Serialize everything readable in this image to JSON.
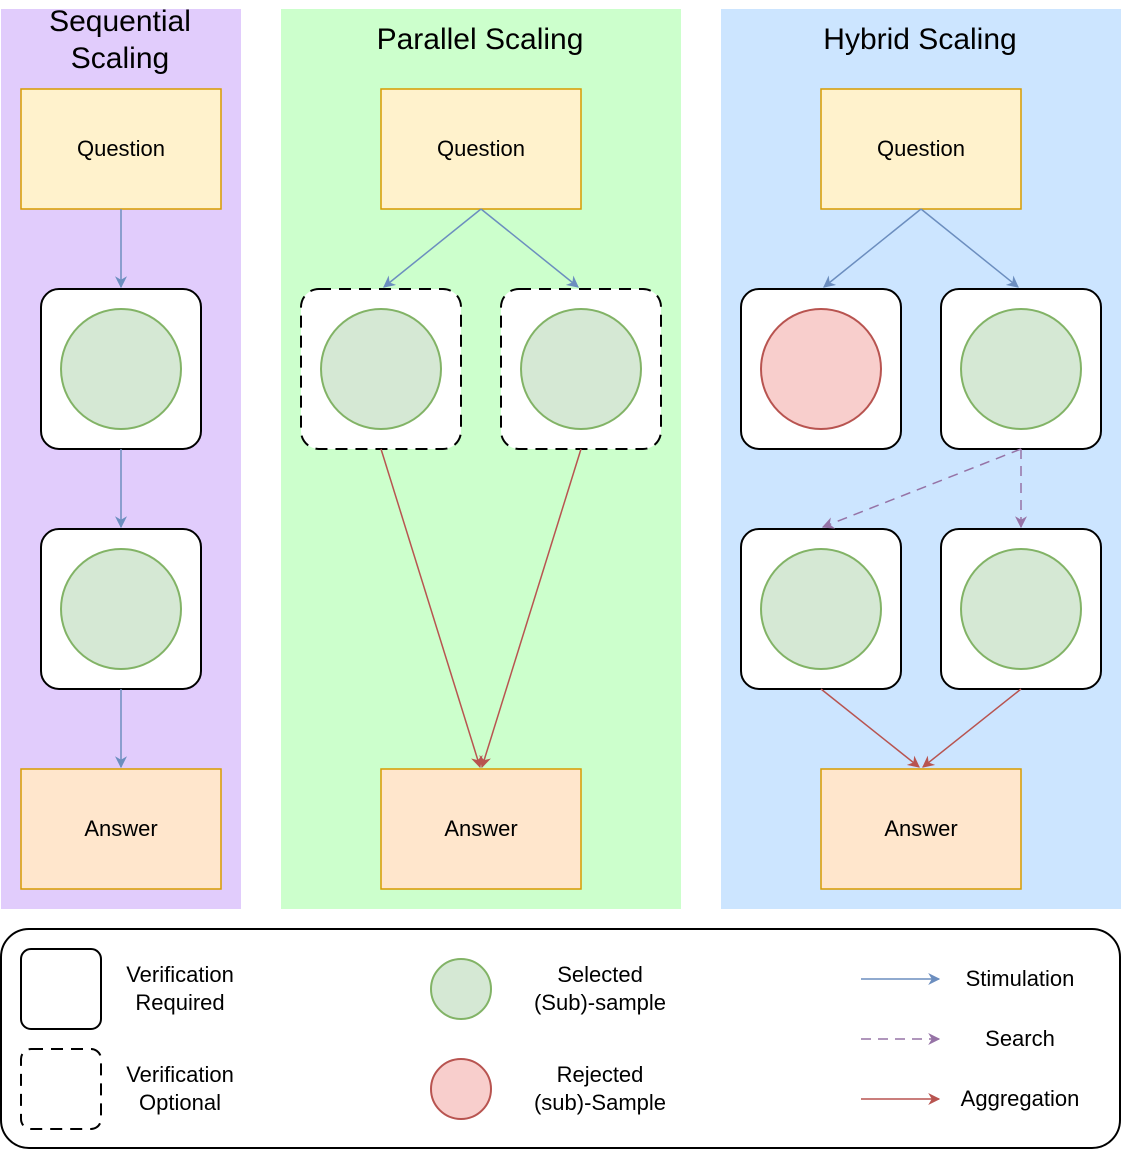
{
  "panels": {
    "sequential": {
      "title_line1": "Sequential",
      "title_line2": "Scaling",
      "question": "Question",
      "answer": "Answer",
      "bg": "#e1ccfc"
    },
    "parallel": {
      "title": "Parallel Scaling",
      "question": "Question",
      "answer": "Answer",
      "bg": "#ccffcc"
    },
    "hybrid": {
      "title": "Hybrid Scaling",
      "question": "Question",
      "answer": "Answer",
      "bg": "#cce5ff"
    }
  },
  "legend": {
    "verification_required": {
      "line1": "Verification",
      "line2": "Required"
    },
    "verification_optional": {
      "line1": "Verification",
      "line2": "Optional"
    },
    "selected": {
      "line1": "Selected",
      "line2": "(Sub)-sample"
    },
    "rejected": {
      "line1": "Rejected",
      "line2": "(sub)-Sample"
    },
    "stimulation": "Stimulation",
    "search": "Search",
    "aggregation": "Aggregation"
  },
  "colors": {
    "question_fill": "#fff2cc",
    "answer_fill": "#ffe6cc",
    "box_stroke": "#d79b00",
    "selected_fill": "#d5e8d4",
    "selected_stroke": "#82b366",
    "rejected_fill": "#f8cecc",
    "rejected_stroke": "#b85450",
    "stimulation": "#6c8ebf",
    "search": "#9673a6",
    "aggregation": "#b85450"
  }
}
